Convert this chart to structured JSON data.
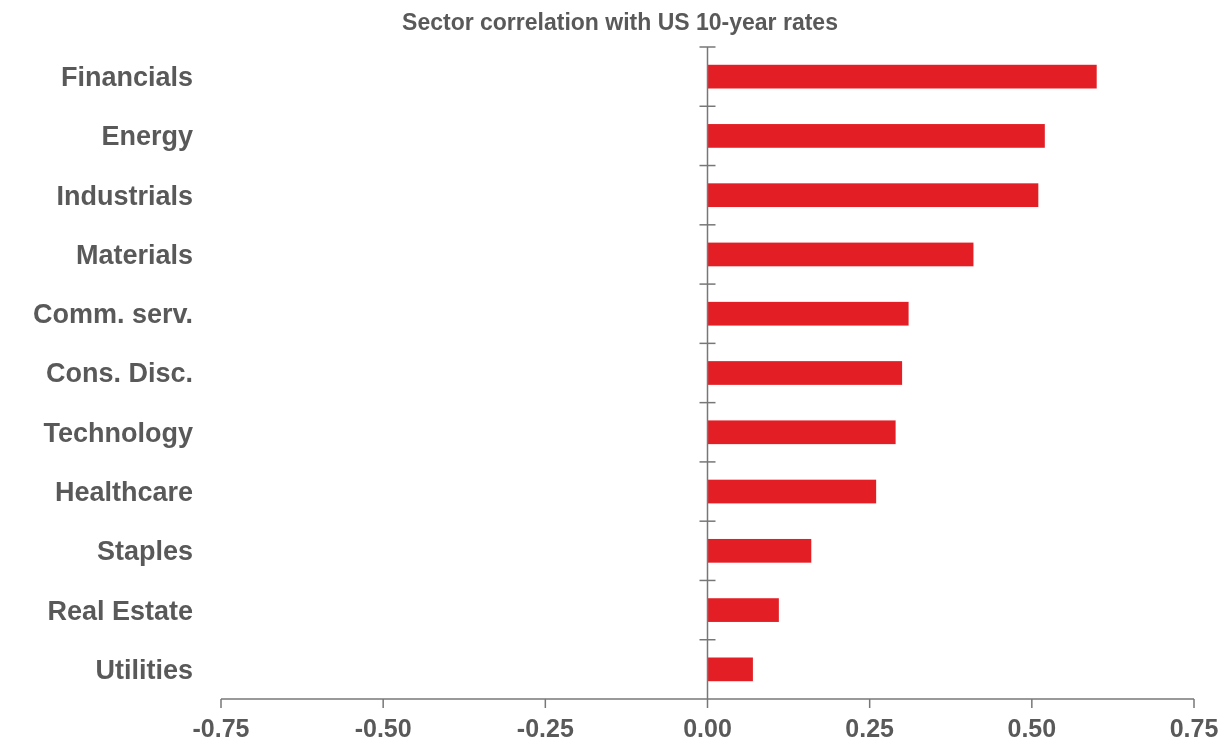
{
  "chart_data": {
    "type": "bar",
    "orientation": "horizontal",
    "title": "Sector correlation with US 10-year rates",
    "categories": [
      "Financials",
      "Energy",
      "Industrials",
      "Materials",
      "Comm. serv.",
      "Cons. Disc.",
      "Technology",
      "Healthcare",
      "Staples",
      "Real Estate",
      "Utilities"
    ],
    "values": [
      0.6,
      0.52,
      0.51,
      0.41,
      0.31,
      0.3,
      0.29,
      0.26,
      0.16,
      0.11,
      0.07
    ],
    "color": "#e31e24",
    "xlim": [
      -0.75,
      0.75
    ],
    "xticks": [
      {
        "value": -0.75,
        "label": "-0.75"
      },
      {
        "value": -0.5,
        "label": "-0.50"
      },
      {
        "value": -0.25,
        "label": "-0.25"
      },
      {
        "value": 0,
        "label": "0.00"
      },
      {
        "value": 0.25,
        "label": "0.25"
      },
      {
        "value": 0.5,
        "label": "0.50"
      },
      {
        "value": 0.75,
        "label": "0.75"
      }
    ],
    "tick_labels": true
  }
}
